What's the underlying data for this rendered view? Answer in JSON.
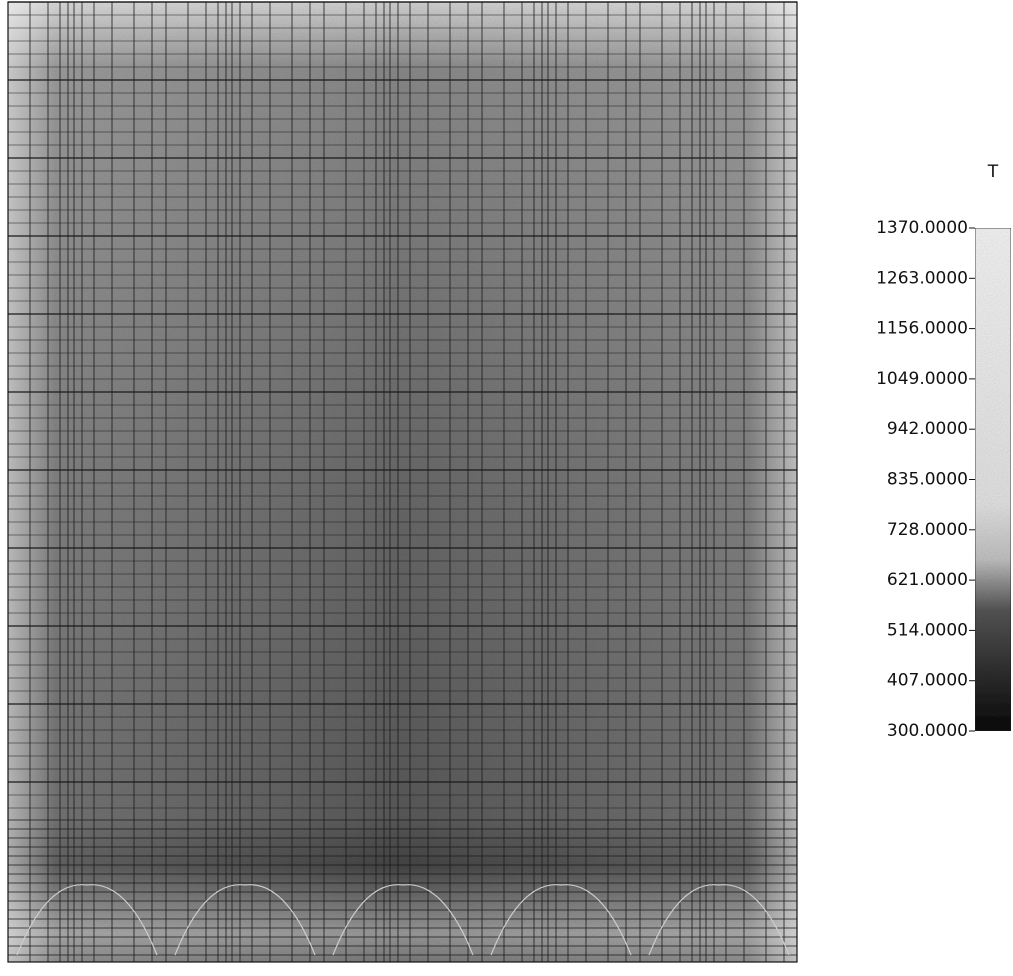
{
  "legend": {
    "title": "T",
    "labels": [
      "1370.0000",
      "1263.0000",
      "1156.0000",
      "1049.0000",
      "942.0000",
      "835.0000",
      "728.0000",
      "621.0000",
      "514.0000",
      "407.0000",
      "300.0000"
    ]
  }
}
